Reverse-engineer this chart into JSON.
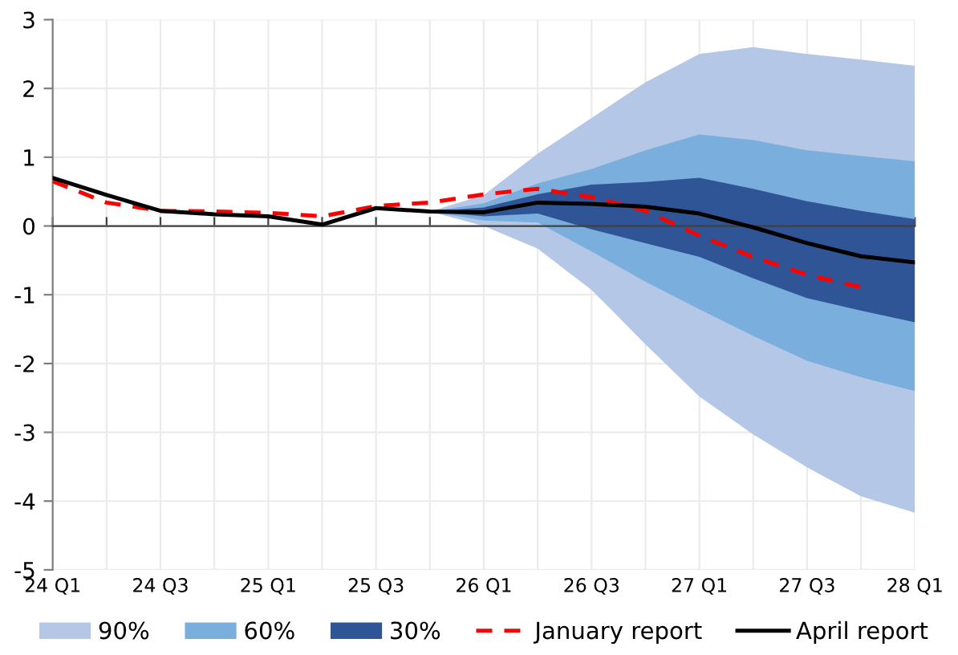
{
  "chart_data": {
    "type": "line",
    "categories": [
      "24 Q1",
      null,
      "24 Q3",
      null,
      "25 Q1",
      null,
      "25 Q3",
      null,
      "26 Q1",
      null,
      "26 Q3",
      null,
      "27 Q1",
      null,
      "27 Q3",
      null,
      "28 Q1"
    ],
    "ylim": [
      -5,
      3
    ],
    "yticks": [
      -5,
      -4,
      -3,
      -2,
      -1,
      0,
      1,
      2,
      3
    ],
    "grid": true,
    "legend": "bottom",
    "series": [
      {
        "name": "90%",
        "type": "area",
        "color": "#b4c7e7",
        "values": [
          null,
          null,
          null,
          null,
          null,
          null,
          null,
          null,
          null,
          null,
          null,
          null,
          null,
          null,
          null,
          null,
          null
        ],
        "lower": [
          null,
          null,
          null,
          null,
          null,
          null,
          null,
          0.21,
          0.0,
          -0.33,
          -0.93,
          -1.72,
          -2.48,
          -3.03,
          -3.51,
          -3.93,
          -4.17
        ],
        "upper": [
          null,
          null,
          null,
          null,
          null,
          null,
          null,
          0.21,
          0.45,
          1.05,
          1.57,
          2.09,
          2.5,
          2.6,
          2.5,
          2.42,
          2.33
        ]
      },
      {
        "name": "60%",
        "type": "area",
        "color": "#7aafdd",
        "values": [
          null,
          null,
          null,
          null,
          null,
          null,
          null,
          null,
          null,
          null,
          null,
          null,
          null,
          null,
          null,
          null,
          null
        ],
        "lower": [
          null,
          null,
          null,
          null,
          null,
          null,
          null,
          0.21,
          0.08,
          0.05,
          -0.37,
          -0.81,
          -1.21,
          -1.6,
          -1.96,
          -2.2,
          -2.4
        ],
        "upper": [
          null,
          null,
          null,
          null,
          null,
          null,
          null,
          0.21,
          0.33,
          0.62,
          0.83,
          1.1,
          1.33,
          1.25,
          1.1,
          1.02,
          0.94
        ]
      },
      {
        "name": "30%",
        "type": "area",
        "color": "#2f5597",
        "values": [
          null,
          null,
          null,
          null,
          null,
          null,
          null,
          null,
          null,
          null,
          null,
          null,
          null,
          null,
          null,
          null,
          null
        ],
        "lower": [
          null,
          null,
          null,
          null,
          null,
          null,
          null,
          0.21,
          0.14,
          0.18,
          -0.05,
          -0.25,
          -0.45,
          -0.76,
          -1.05,
          -1.23,
          -1.4
        ],
        "upper": [
          null,
          null,
          null,
          null,
          null,
          null,
          null,
          0.21,
          0.27,
          0.46,
          0.6,
          0.64,
          0.7,
          0.54,
          0.36,
          0.22,
          0.1
        ]
      },
      {
        "name": "January report",
        "type": "line",
        "color": "#ff0000",
        "line_style": "dashed",
        "values": [
          0.65,
          0.34,
          0.22,
          0.21,
          0.19,
          0.14,
          0.29,
          0.34,
          0.46,
          0.54,
          0.42,
          0.22,
          -0.14,
          -0.45,
          -0.71,
          -0.89,
          null
        ]
      },
      {
        "name": "April report",
        "color": "#000000",
        "line_style": "solid",
        "values": [
          0.7,
          0.45,
          0.22,
          0.17,
          0.14,
          0.02,
          0.26,
          0.21,
          0.2,
          0.34,
          0.32,
          0.28,
          0.18,
          -0.02,
          -0.25,
          -0.44,
          -0.53
        ]
      }
    ]
  }
}
